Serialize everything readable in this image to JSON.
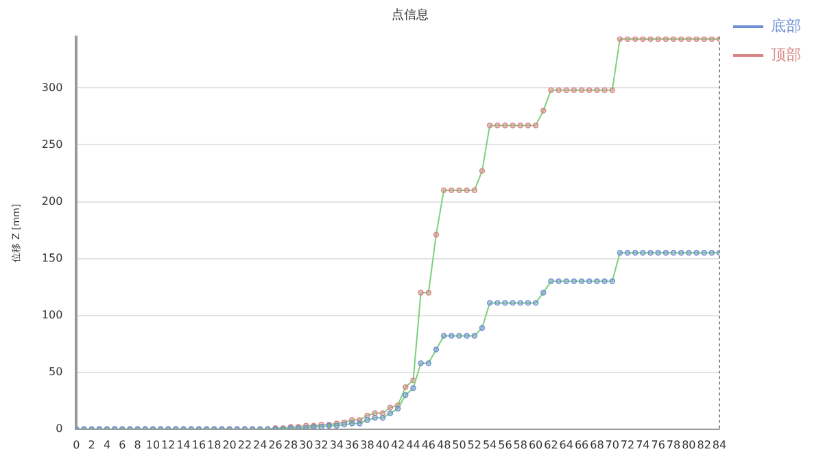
{
  "chart_data": {
    "type": "line",
    "title": "点信息",
    "ylabel": "位移 Z [mm]",
    "x": [
      0,
      1,
      2,
      3,
      4,
      5,
      6,
      7,
      8,
      9,
      10,
      11,
      12,
      13,
      14,
      15,
      16,
      17,
      18,
      19,
      20,
      21,
      22,
      23,
      24,
      25,
      26,
      27,
      28,
      29,
      30,
      31,
      32,
      33,
      34,
      35,
      36,
      37,
      38,
      39,
      40,
      41,
      42,
      43,
      44,
      45,
      46,
      47,
      48,
      49,
      50,
      51,
      52,
      53,
      54,
      55,
      56,
      57,
      58,
      59,
      60,
      61,
      62,
      63,
      64,
      65,
      66,
      67,
      68,
      69,
      70,
      71,
      72,
      73,
      74,
      75,
      76,
      77,
      78,
      79,
      80,
      81,
      82,
      83,
      84
    ],
    "series": [
      {
        "name": "底部",
        "color": "#6f8fd3",
        "values": [
          0,
          0,
          0,
          0,
          0,
          0,
          0,
          0,
          0,
          0,
          0,
          0,
          0,
          0,
          0,
          0,
          0,
          0,
          0,
          0,
          0,
          0,
          0,
          0,
          0,
          0,
          0,
          0,
          1,
          1,
          1,
          2,
          2,
          3,
          3,
          4,
          5,
          5,
          8,
          10,
          10,
          14,
          18,
          30,
          36,
          58,
          58,
          70,
          82,
          82,
          82,
          82,
          82,
          89,
          111,
          111,
          111,
          111,
          111,
          111,
          111,
          120,
          130,
          130,
          130,
          130,
          130,
          130,
          130,
          130,
          130,
          155,
          155,
          155,
          155,
          155,
          155,
          155,
          155,
          155,
          155,
          155,
          155,
          155,
          155
        ]
      },
      {
        "name": "顶部",
        "color": "#d98585",
        "values": [
          0,
          0,
          0,
          0,
          0,
          0,
          0,
          0,
          0,
          0,
          0,
          0,
          0,
          0,
          0,
          0,
          0,
          0,
          0,
          0,
          0,
          0,
          0,
          0,
          0,
          0,
          1,
          1,
          2,
          2,
          3,
          3,
          4,
          4,
          5,
          6,
          8,
          8,
          12,
          14,
          14,
          19,
          21,
          37,
          43,
          120,
          120,
          171,
          210,
          210,
          210,
          210,
          210,
          227,
          267,
          267,
          267,
          267,
          267,
          267,
          267,
          280,
          298,
          298,
          298,
          298,
          298,
          298,
          298,
          298,
          298,
          343,
          343,
          343,
          343,
          343,
          343,
          343,
          343,
          343,
          343,
          343,
          343,
          343,
          343
        ]
      }
    ],
    "xlim": [
      0,
      84
    ],
    "xticks": [
      0,
      2,
      4,
      6,
      8,
      10,
      12,
      14,
      16,
      18,
      20,
      22,
      24,
      26,
      28,
      30,
      32,
      34,
      36,
      38,
      40,
      42,
      44,
      46,
      48,
      50,
      52,
      54,
      56,
      58,
      60,
      62,
      64,
      66,
      68,
      70,
      72,
      74,
      76,
      78,
      80,
      82,
      84
    ],
    "ylim": [
      0,
      345
    ],
    "yticks": [
      0,
      50,
      100,
      150,
      200,
      250,
      300
    ],
    "grid": "y",
    "legend": "top right",
    "marker": "circle",
    "line_style": "solid"
  }
}
